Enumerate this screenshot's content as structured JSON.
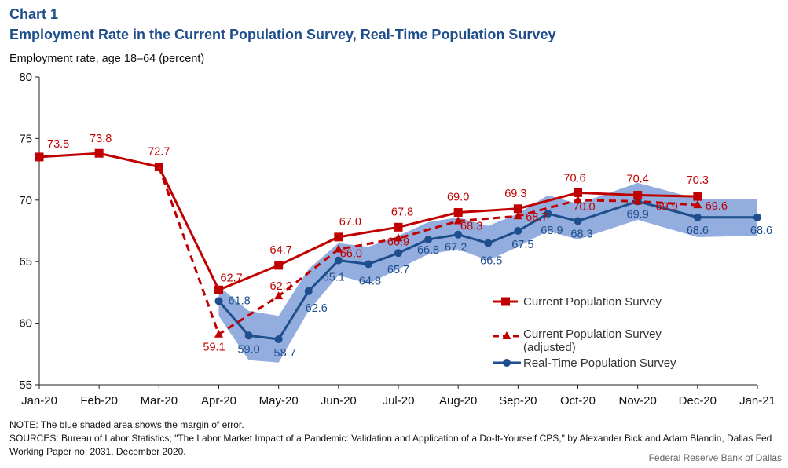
{
  "header": {
    "chart_number": "Chart 1",
    "title": "Employment Rate in the Current Population Survey, Real-Time Population Survey"
  },
  "footer": {
    "note": "NOTE: The blue shaded area shows the margin of error.",
    "sources": "SOURCES: Bureau of Labor Statistics; \"The Labor Market Impact of a Pandemic: Validation and Application of a Do-It-Yourself CPS,\" by Alexander Bick and Adam Blandin, Dallas Fed Working Paper no. 2031, December 2020.",
    "credit": "Federal Reserve Bank of Dallas"
  },
  "colors": {
    "cps": "#c00000",
    "rps": "#1f4e8c",
    "band": "#7f9fd8"
  },
  "chart_data": {
    "type": "line",
    "ylabel": "Employment rate, age 18–64 (percent)",
    "xlabel": "",
    "ylim": [
      55,
      80
    ],
    "yticks": [
      55,
      60,
      65,
      70,
      75,
      80
    ],
    "x": [
      "Jan-20",
      "Feb-20",
      "Mar-20",
      "Apr-20",
      "May-20",
      "Jun-20",
      "Jul-20",
      "Aug-20",
      "Sep-20",
      "Oct-20",
      "Nov-20",
      "Dec-20",
      "Jan-21"
    ],
    "legend_position": "lower-right",
    "grid": false,
    "series": [
      {
        "name": "Current Population Survey",
        "style": "solid-square",
        "points": [
          {
            "x": "Jan-20",
            "y": 73.5,
            "label": "73.5"
          },
          {
            "x": "Feb-20",
            "y": 73.8,
            "label": "73.8"
          },
          {
            "x": "Mar-20",
            "y": 72.7,
            "label": "72.7"
          },
          {
            "x": "Apr-20",
            "y": 62.7,
            "label": "62.7"
          },
          {
            "x": "May-20",
            "y": 64.7,
            "label": "64.7"
          },
          {
            "x": "Jun-20",
            "y": 67.0,
            "label": "67.0"
          },
          {
            "x": "Jul-20",
            "y": 67.8,
            "label": "67.8"
          },
          {
            "x": "Aug-20",
            "y": 69.0,
            "label": "69.0"
          },
          {
            "x": "Sep-20",
            "y": 69.3,
            "label": "69.3"
          },
          {
            "x": "Oct-20",
            "y": 70.6,
            "label": "70.6"
          },
          {
            "x": "Nov-20",
            "y": 70.4,
            "label": "70.4"
          },
          {
            "x": "Dec-20",
            "y": 70.3,
            "label": "70.3"
          }
        ]
      },
      {
        "name": "Current Population Survey (adjusted)",
        "name_lines": [
          "Current Population Survey",
          "(adjusted)"
        ],
        "style": "dashed-triangle",
        "points": [
          {
            "x": "Mar-20",
            "y": 72.7,
            "marker": false
          },
          {
            "x": "Apr-20",
            "y": 59.1,
            "label": "59.1"
          },
          {
            "x": "May-20",
            "y": 62.2,
            "label": "62.2"
          },
          {
            "x": "Jun-20",
            "y": 66.0,
            "label": "66.0"
          },
          {
            "x": "Jul-20",
            "y": 66.9,
            "label": "66.9"
          },
          {
            "x": "Aug-20",
            "y": 68.3,
            "label": "68.3"
          },
          {
            "x": "Sep-20",
            "y": 68.7,
            "label": "68.7"
          },
          {
            "x": "Oct-20",
            "y": 70.0,
            "label": "70.0"
          },
          {
            "x": "Nov-20",
            "y": 69.9,
            "label": "69.9"
          },
          {
            "x": "Dec-20",
            "y": 69.6,
            "label": "69.6"
          }
        ]
      },
      {
        "name": "Real-Time Population Survey",
        "style": "solid-circle",
        "points": [
          {
            "x": "Apr-20",
            "y": 61.8,
            "label": "61.8"
          },
          {
            "x": "Apr-20.5",
            "y": 59.0,
            "label": "59.0"
          },
          {
            "x": "May-20",
            "y": 58.7,
            "label": "58.7"
          },
          {
            "x": "May-20.5",
            "y": 62.6,
            "label": "62.6"
          },
          {
            "x": "Jun-20",
            "y": 65.1,
            "label": "65.1"
          },
          {
            "x": "Jun-20.5",
            "y": 64.8,
            "label": "64.8"
          },
          {
            "x": "Jul-20",
            "y": 65.7,
            "label": "65.7"
          },
          {
            "x": "Jul-20.5",
            "y": 66.8,
            "label": "66.8"
          },
          {
            "x": "Aug-20",
            "y": 67.2,
            "label": "67.2"
          },
          {
            "x": "Aug-20.5",
            "y": 66.5,
            "label": "66.5"
          },
          {
            "x": "Sep-20",
            "y": 67.5,
            "label": "67.5"
          },
          {
            "x": "Sep-20.5",
            "y": 68.9,
            "label": "68.9"
          },
          {
            "x": "Oct-20",
            "y": 68.3,
            "label": "68.3"
          },
          {
            "x": "Nov-20",
            "y": 69.9,
            "label": "69.9"
          },
          {
            "x": "Dec-20",
            "y": 68.6,
            "label": "68.6"
          },
          {
            "x": "Jan-21",
            "y": 68.6,
            "label": "68.6"
          }
        ],
        "margin_of_error_band": [
          {
            "x": "Apr-20",
            "low": 60.6,
            "high": 63.0
          },
          {
            "x": "Apr-20.5",
            "low": 57.0,
            "high": 61.0
          },
          {
            "x": "May-20",
            "low": 56.8,
            "high": 60.6
          },
          {
            "x": "May-20.5",
            "low": 61.0,
            "high": 64.4
          },
          {
            "x": "Jun-20",
            "low": 63.9,
            "high": 66.5
          },
          {
            "x": "Jun-20.5",
            "low": 63.2,
            "high": 66.2
          },
          {
            "x": "Jul-20",
            "low": 64.4,
            "high": 67.1
          },
          {
            "x": "Jul-20.5",
            "low": 65.6,
            "high": 68.2
          },
          {
            "x": "Aug-20",
            "low": 66.0,
            "high": 68.6
          },
          {
            "x": "Aug-20.5",
            "low": 65.1,
            "high": 67.9
          },
          {
            "x": "Sep-20",
            "low": 66.2,
            "high": 68.9
          },
          {
            "x": "Sep-20.5",
            "low": 67.5,
            "high": 70.4
          },
          {
            "x": "Oct-20",
            "low": 66.8,
            "high": 69.7
          },
          {
            "x": "Nov-20",
            "low": 68.4,
            "high": 71.4
          },
          {
            "x": "Dec-20",
            "low": 67.0,
            "high": 70.1
          },
          {
            "x": "Jan-21",
            "low": 67.1,
            "high": 70.1
          }
        ]
      }
    ]
  }
}
